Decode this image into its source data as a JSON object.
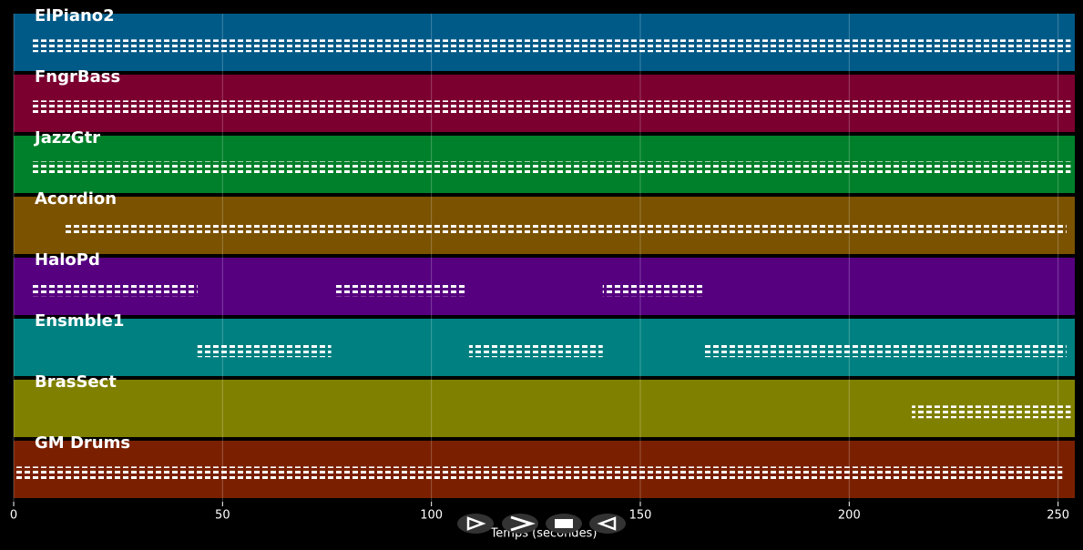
{
  "chart_data": {
    "type": "timeline",
    "xlabel": "Temps (secondes)",
    "xlim": [
      0,
      254
    ],
    "xticks": [
      0,
      50,
      100,
      150,
      200,
      250
    ],
    "grid": true,
    "tracks": [
      {
        "name": "ElPiano2",
        "color": "#005a87",
        "segments": [
          [
            4,
            253
          ]
        ]
      },
      {
        "name": "FngrBass",
        "color": "#7b0030",
        "segments": [
          [
            4,
            253
          ]
        ]
      },
      {
        "name": "JazzGtr",
        "color": "#00802a",
        "segments": [
          [
            4,
            253
          ]
        ]
      },
      {
        "name": "Acordion",
        "color": "#7a5200",
        "segments": [
          [
            12,
            252
          ]
        ]
      },
      {
        "name": "HaloPd",
        "color": "#560080",
        "segments": [
          [
            4,
            44
          ],
          [
            77,
            108
          ],
          [
            141,
            165
          ]
        ]
      },
      {
        "name": "Ensmble1",
        "color": "#008080",
        "segments": [
          [
            44,
            76
          ],
          [
            109,
            141
          ],
          [
            165,
            252
          ]
        ]
      },
      {
        "name": "BrasSect",
        "color": "#808000",
        "segments": [
          [
            215,
            253
          ]
        ]
      },
      {
        "name": "GM Drums",
        "color": "#7a2000",
        "segments": [
          [
            0,
            251
          ]
        ]
      }
    ]
  }
}
